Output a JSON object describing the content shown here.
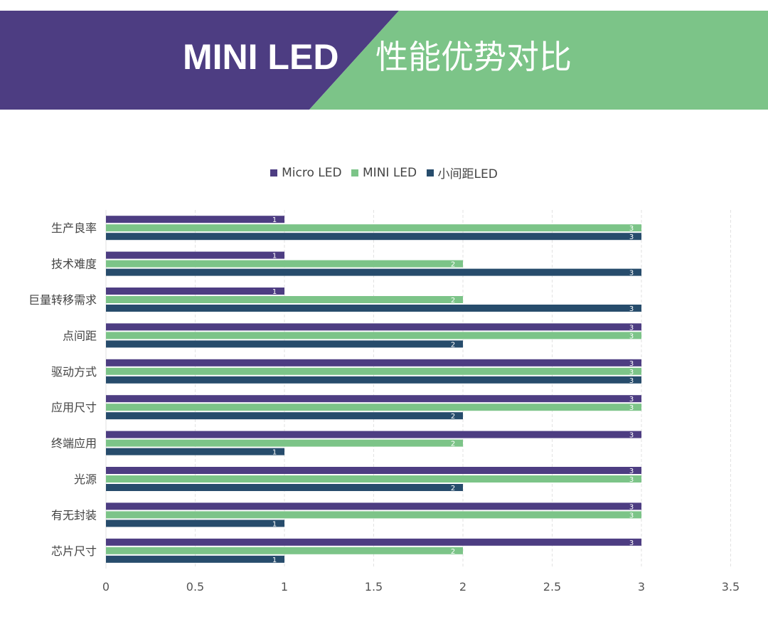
{
  "header": {
    "title_left": "MINI LED",
    "title_right": "性能优势对比",
    "colors": {
      "left": "#4d3d82",
      "right": "#7cc488"
    }
  },
  "chart_data": {
    "type": "bar",
    "orientation": "horizontal",
    "categories": [
      "生产良率",
      "技术难度",
      "巨量转移需求",
      "点间距",
      "驱动方式",
      "应用尺寸",
      "终端应用",
      "光源",
      "有无封装",
      "芯片尺寸"
    ],
    "series": [
      {
        "name": "Micro LED",
        "color": "#4d3d82",
        "values": [
          1,
          1,
          1,
          3,
          3,
          3,
          3,
          3,
          3,
          3
        ]
      },
      {
        "name": "MINI LED",
        "color": "#7cc488",
        "values": [
          3,
          2,
          2,
          3,
          3,
          3,
          2,
          3,
          3,
          2
        ]
      },
      {
        "name": "小间距LED",
        "color": "#274c6c",
        "values": [
          3,
          3,
          3,
          2,
          3,
          2,
          1,
          2,
          1,
          1
        ]
      }
    ],
    "xlim": [
      0,
      3.5
    ],
    "xticks": [
      "0",
      "0.5",
      "1",
      "1.5",
      "2",
      "2.5",
      "3",
      "3.5"
    ],
    "grid": true,
    "data_labels": true,
    "legend": "top"
  }
}
